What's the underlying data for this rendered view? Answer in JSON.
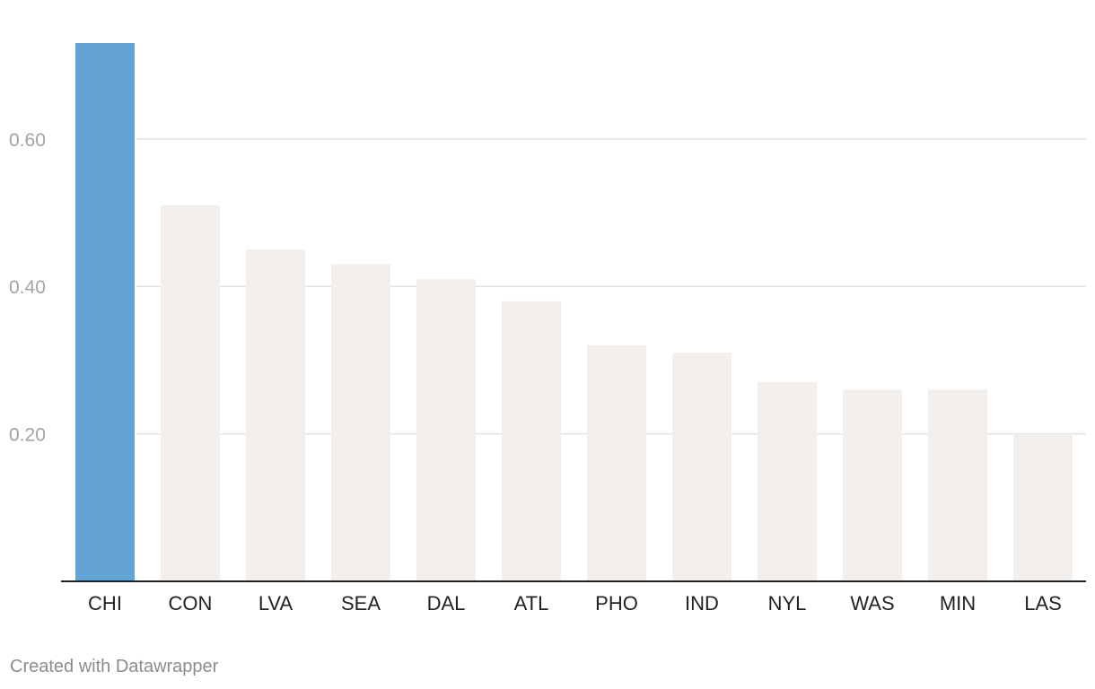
{
  "chart_data": {
    "type": "bar",
    "categories": [
      "CHI",
      "CON",
      "LVA",
      "SEA",
      "DAL",
      "ATL",
      "PHO",
      "IND",
      "NYL",
      "WAS",
      "MIN",
      "LAS"
    ],
    "values": [
      0.73,
      0.51,
      0.45,
      0.43,
      0.41,
      0.38,
      0.32,
      0.31,
      0.27,
      0.26,
      0.26,
      0.2
    ],
    "highlight_category": "CHI",
    "ylim": [
      0,
      0.73
    ],
    "yticks": [
      0.2,
      0.4,
      0.6
    ],
    "ytick_labels": [
      "0.20",
      "0.40",
      "0.60"
    ],
    "grid": true,
    "colors": {
      "highlight": "#64a4d4",
      "default": "#f2efec",
      "gridline": "#e3e3e3",
      "baseline": "#222222"
    }
  },
  "footer": {
    "credit": "Created with Datawrapper"
  }
}
